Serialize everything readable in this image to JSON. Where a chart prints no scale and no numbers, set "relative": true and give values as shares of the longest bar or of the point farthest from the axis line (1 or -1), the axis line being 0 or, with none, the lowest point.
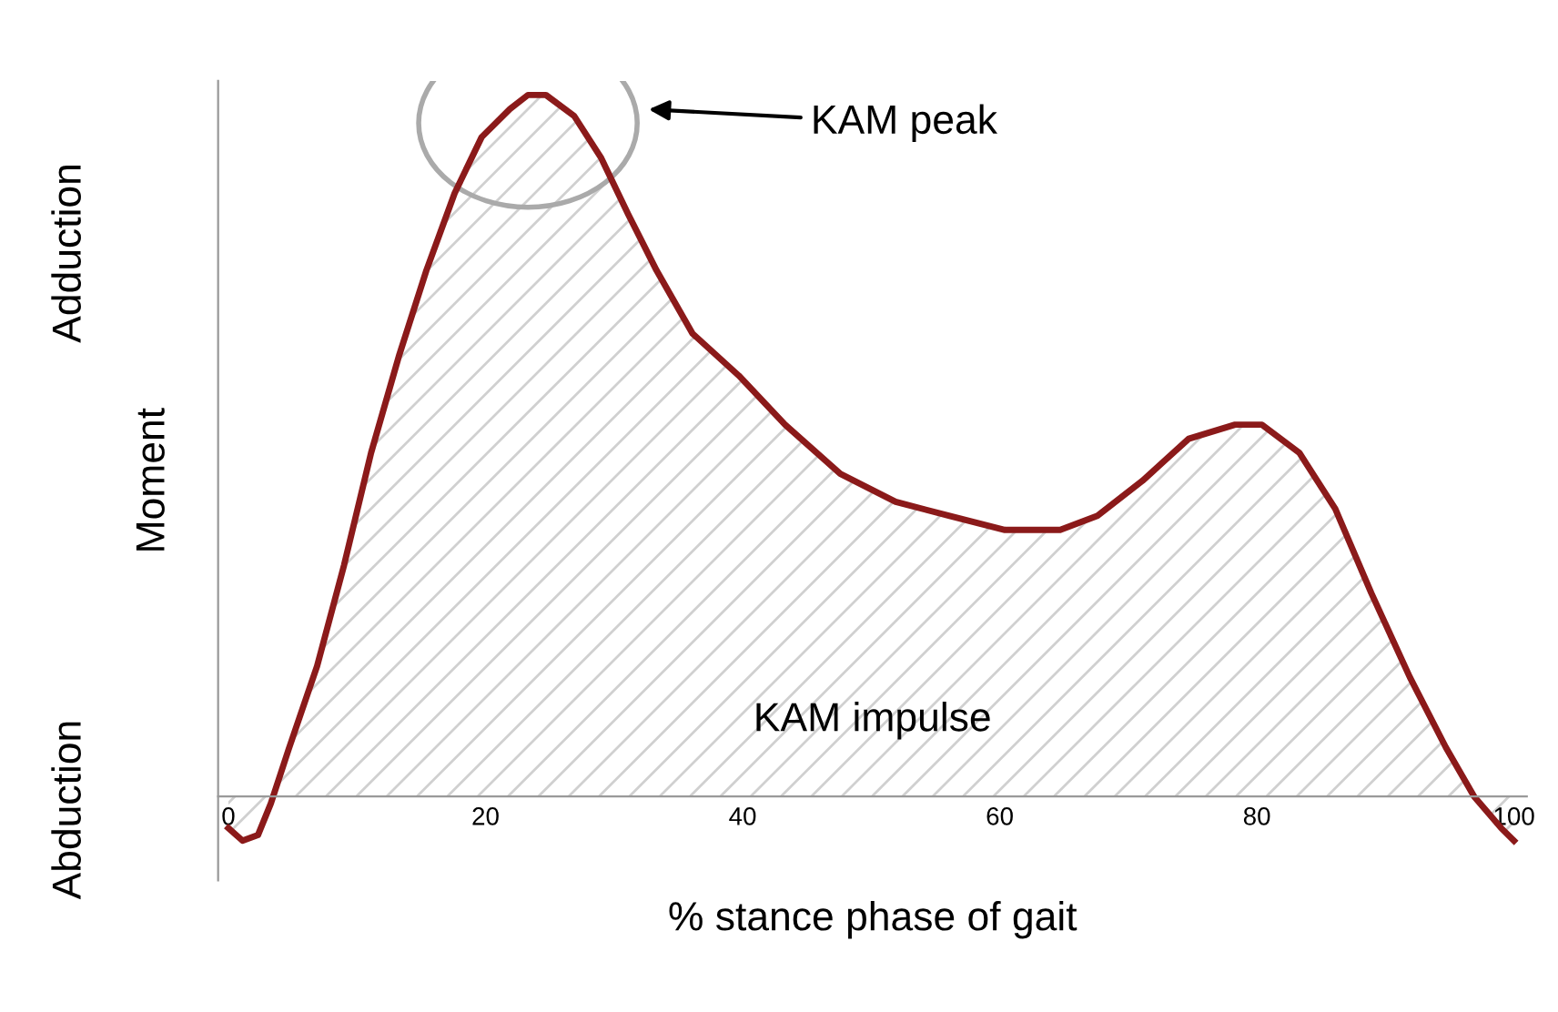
{
  "chart_data": {
    "type": "area",
    "relative": true,
    "xlabel": "% stance phase of gait",
    "ylabel": "Moment",
    "annotations": [
      "Adduction",
      "Abduction",
      "KAM peak",
      "KAM impulse"
    ],
    "xlim": [
      -0.8,
      101
    ],
    "xticks": [
      0,
      20,
      40,
      60,
      80,
      100
    ],
    "grid": false,
    "legend": false,
    "series": [
      {
        "color": "#8b1a1a",
        "x": [
          0,
          1.1,
          2.3,
          3.3,
          4.7,
          6.9,
          9,
          11.1,
          13.3,
          15.4,
          17.6,
          19.7,
          21.9,
          23.3,
          24.7,
          26.9,
          29,
          31.1,
          33.3,
          36.1,
          39.7,
          43.3,
          47.6,
          51.9,
          56.1,
          60.4,
          64.7,
          67.6,
          71.1,
          74.7,
          78.3,
          80.4,
          83.3,
          86.1,
          88.9,
          91.9,
          94.7,
          96.9,
          99,
          100
        ],
        "values": [
          -0.045,
          -0.063,
          -0.055,
          -0.01,
          0.068,
          0.186,
          0.33,
          0.49,
          0.63,
          0.75,
          0.86,
          0.94,
          0.98,
          1.0,
          1.0,
          0.97,
          0.91,
          0.83,
          0.75,
          0.66,
          0.6,
          0.53,
          0.46,
          0.42,
          0.4,
          0.38,
          0.38,
          0.4,
          0.45,
          0.51,
          0.53,
          0.53,
          0.49,
          0.41,
          0.29,
          0.17,
          0.07,
          0.0,
          -0.045,
          -0.063
        ]
      }
    ]
  }
}
